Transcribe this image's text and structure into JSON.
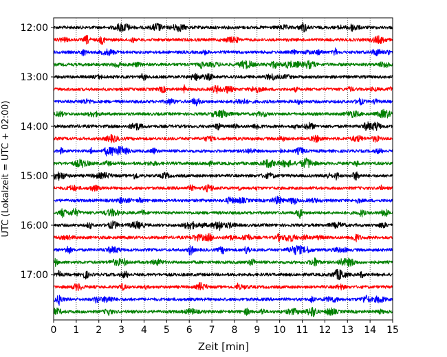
{
  "chart_data": {
    "type": "line",
    "title": "",
    "xlabel": "Zeit  [min]",
    "ylabel": "UTC (Lokalzeit = UTC + 02:00)",
    "xlim": [
      0,
      15
    ],
    "x_ticks": [
      "0",
      "1",
      "2",
      "3",
      "4",
      "5",
      "6",
      "7",
      "8",
      "9",
      "10",
      "11",
      "12",
      "13",
      "14",
      "15"
    ],
    "y_ticks": [
      "12:00",
      "13:00",
      "14:00",
      "15:00",
      "16:00",
      "17:00"
    ],
    "grid": "vertical dotted",
    "row_interval_minutes": 15,
    "trace_color_cycle": [
      "#000000",
      "#ff0000",
      "#0000ff",
      "#008000"
    ],
    "traces": [
      {
        "start": "12:00",
        "color": "#000000"
      },
      {
        "start": "12:15",
        "color": "#ff0000"
      },
      {
        "start": "12:30",
        "color": "#0000ff"
      },
      {
        "start": "12:45",
        "color": "#008000"
      },
      {
        "start": "13:00",
        "color": "#000000"
      },
      {
        "start": "13:15",
        "color": "#ff0000"
      },
      {
        "start": "13:30",
        "color": "#0000ff"
      },
      {
        "start": "13:45",
        "color": "#008000"
      },
      {
        "start": "14:00",
        "color": "#000000"
      },
      {
        "start": "14:15",
        "color": "#ff0000"
      },
      {
        "start": "14:30",
        "color": "#0000ff"
      },
      {
        "start": "14:45",
        "color": "#008000"
      },
      {
        "start": "15:00",
        "color": "#000000"
      },
      {
        "start": "15:15",
        "color": "#ff0000"
      },
      {
        "start": "15:30",
        "color": "#0000ff"
      },
      {
        "start": "15:45",
        "color": "#008000"
      },
      {
        "start": "16:00",
        "color": "#000000"
      },
      {
        "start": "16:15",
        "color": "#ff0000"
      },
      {
        "start": "16:30",
        "color": "#0000ff"
      },
      {
        "start": "16:45",
        "color": "#008000"
      },
      {
        "start": "17:00",
        "color": "#000000"
      },
      {
        "start": "17:15",
        "color": "#ff0000"
      },
      {
        "start": "17:30",
        "color": "#0000ff"
      },
      {
        "start": "17:45",
        "color": "#008000"
      }
    ]
  }
}
